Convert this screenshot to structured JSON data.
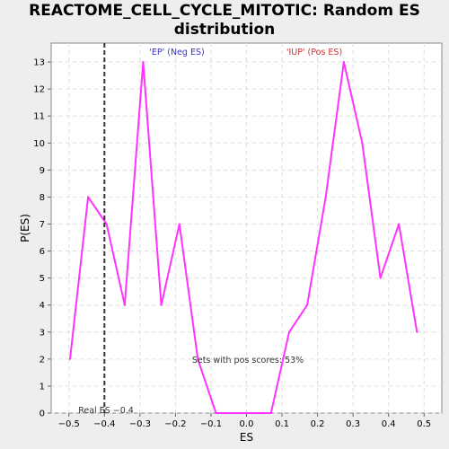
{
  "chart_data": {
    "type": "line",
    "title_line1": "REACTOME_CELL_CYCLE_MITOTIC: Random ES",
    "title_line2": "distribution",
    "xlabel": "ES",
    "ylabel": "P(ES)",
    "xlim": [
      -0.55,
      0.55
    ],
    "ylim": [
      0,
      13.7
    ],
    "x_ticks": [
      -0.5,
      -0.4,
      -0.3,
      -0.2,
      -0.1,
      0.0,
      0.1,
      0.2,
      0.3,
      0.4,
      0.5
    ],
    "x_tick_labels": [
      "−0.5",
      "−0.4",
      "−0.3",
      "−0.2",
      "−0.1",
      "0.0",
      "0.1",
      "0.2",
      "0.3",
      "0.4",
      "0.5"
    ],
    "y_ticks": [
      0,
      1,
      2,
      3,
      4,
      5,
      6,
      7,
      8,
      9,
      10,
      11,
      12,
      13
    ],
    "y_tick_labels": [
      "0",
      "1",
      "2",
      "3",
      "4",
      "5",
      "6",
      "7",
      "8",
      "9",
      "10",
      "11",
      "12",
      "13"
    ],
    "grid": true,
    "series": [
      {
        "color": "#ff33ff",
        "x": [
          -0.497,
          -0.446,
          -0.394,
          -0.343,
          -0.291,
          -0.24,
          -0.189,
          -0.137,
          -0.086,
          -0.034,
          0.017,
          0.069,
          0.12,
          0.171,
          0.223,
          0.274,
          0.326,
          0.377,
          0.429,
          0.48
        ],
        "y": [
          2,
          8,
          7,
          4,
          13,
          4,
          7,
          2,
          0,
          0,
          0,
          0,
          3,
          4,
          8,
          13,
          10,
          5,
          7,
          3
        ]
      }
    ],
    "real_es": {
      "value": -0.4,
      "label": "Real ES −0.4",
      "color": "#333333"
    },
    "annotations": {
      "neg_label": "'EP' (Neg ES)",
      "neg_color": "#3333cc",
      "pos_label": "'IUP' (Pos ES)",
      "pos_color": "#cc3333",
      "pos_scores": "Sets with pos scores: 53%",
      "pos_scores_color": "#333333"
    }
  }
}
